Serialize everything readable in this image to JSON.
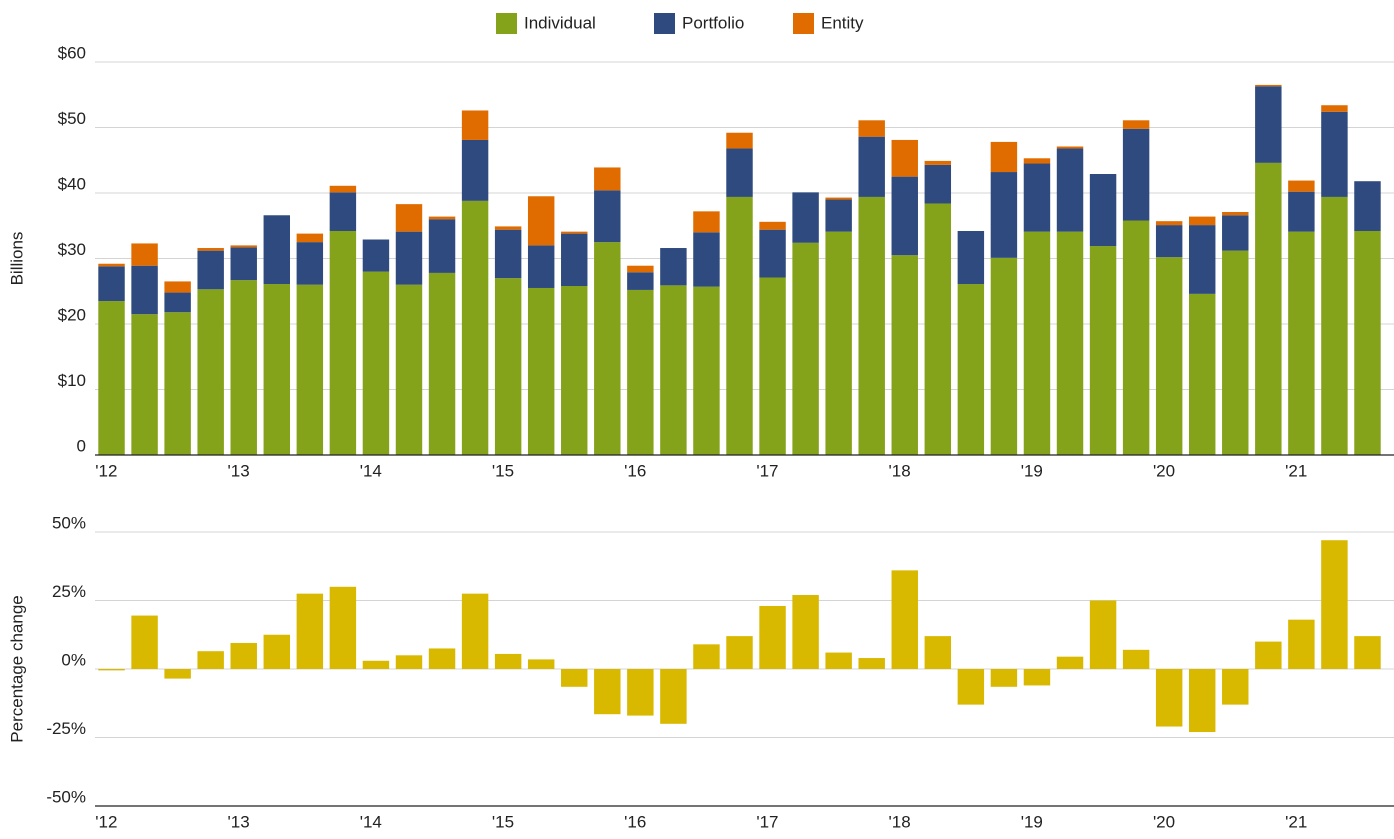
{
  "chart_data": [
    {
      "type": "bar",
      "stacked": true,
      "ylabel": "Billions",
      "grid": true,
      "legend": "top",
      "categories": [
        "'12",
        null,
        null,
        null,
        "'13",
        null,
        null,
        null,
        "'14",
        null,
        null,
        null,
        "'15",
        null,
        null,
        null,
        "'16",
        null,
        null,
        null,
        "'17",
        null,
        null,
        null,
        "'18",
        null,
        null,
        null,
        "'19",
        null,
        null,
        null,
        "'20",
        null,
        null,
        null,
        "'21",
        null,
        null
      ],
      "series": [
        {
          "name": "Individual",
          "color": "#85a21b",
          "values": [
            23.5,
            21.5,
            21.8,
            25.3,
            26.7,
            26.1,
            26.0,
            34.2,
            28.0,
            26.0,
            27.8,
            38.8,
            27.0,
            25.5,
            25.8,
            32.5,
            25.2,
            25.9,
            25.7,
            39.4,
            27.1,
            32.4,
            34.1,
            39.4,
            30.5,
            38.4,
            26.1,
            30.1,
            34.1,
            34.1,
            31.9,
            35.8,
            30.2,
            24.6,
            31.2,
            44.6,
            34.1,
            39.4,
            34.2
          ]
        },
        {
          "name": "Portfolio",
          "color": "#2e4a7e",
          "values": [
            5.3,
            7.4,
            3.0,
            5.9,
            5.0,
            10.5,
            6.5,
            5.9,
            4.9,
            8.1,
            8.2,
            9.3,
            7.4,
            6.5,
            8.0,
            7.9,
            2.7,
            5.7,
            8.3,
            7.4,
            7.3,
            7.7,
            4.9,
            9.2,
            12.0,
            5.9,
            8.1,
            13.1,
            10.4,
            12.7,
            11.0,
            14.0,
            4.9,
            10.5,
            5.4,
            11.7,
            6.1,
            13.0,
            7.6
          ]
        },
        {
          "name": "Entity",
          "color": "#e06c00",
          "values": [
            0.4,
            3.4,
            1.7,
            0.4,
            0.3,
            0,
            1.3,
            1.0,
            0,
            4.2,
            0.4,
            4.5,
            0.5,
            7.5,
            0.3,
            3.5,
            1.0,
            0,
            3.2,
            2.4,
            1.2,
            0,
            0.3,
            2.5,
            5.6,
            0.6,
            0,
            4.6,
            0.8,
            0.3,
            0,
            1.3,
            0.6,
            1.3,
            0.5,
            0.2,
            1.7,
            1.0,
            0
          ]
        }
      ],
      "ylim": [
        0,
        60
      ],
      "yticks": [
        0,
        {
          "value": 10,
          "label": "$10"
        },
        {
          "value": 20,
          "label": "$20"
        },
        {
          "value": 30,
          "label": "$30"
        },
        {
          "value": 40,
          "label": "$40"
        },
        {
          "value": 50,
          "label": "$50"
        },
        {
          "value": 60,
          "label": "$60"
        }
      ]
    },
    {
      "type": "bar",
      "ylabel": "Percentage change",
      "grid": true,
      "color": "#d9b800",
      "categories": [
        "'12",
        null,
        null,
        null,
        "'13",
        null,
        null,
        null,
        "'14",
        null,
        null,
        null,
        "'15",
        null,
        null,
        null,
        "'16",
        null,
        null,
        null,
        "'17",
        null,
        null,
        null,
        "'18",
        null,
        null,
        null,
        "'19",
        null,
        null,
        null,
        "'20",
        null,
        null,
        null,
        "'21",
        null,
        null
      ],
      "values": [
        -0.5,
        19.5,
        -3.5,
        6.5,
        9.5,
        12.5,
        27.5,
        30,
        3,
        5,
        7.5,
        27.5,
        5.5,
        3.5,
        -6.5,
        -16.5,
        -17,
        -20,
        9,
        12,
        23,
        27,
        6,
        4,
        36,
        12,
        -13,
        -6.5,
        -6,
        4.5,
        25,
        7,
        -21,
        -23,
        -13,
        10,
        18,
        47,
        12
      ],
      "ylim": [
        -50,
        50
      ],
      "yticks": [
        {
          "value": -50,
          "label": "-50%"
        },
        {
          "value": -25,
          "label": "-25%"
        },
        {
          "value": 0,
          "label": "0%"
        },
        {
          "value": 25,
          "label": "25%"
        },
        {
          "value": 50,
          "label": "50%"
        }
      ]
    }
  ]
}
